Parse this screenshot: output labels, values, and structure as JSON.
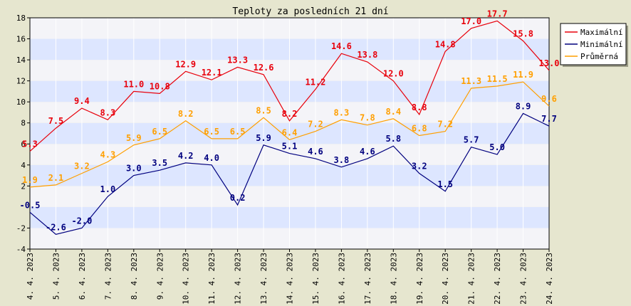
{
  "chart_data": {
    "type": "line",
    "title": "Teploty za posledních 21 dní",
    "xlabel": "",
    "ylabel": "",
    "ylim": [
      -4,
      18
    ],
    "yticks": [
      -4,
      -2,
      2,
      4,
      6,
      8,
      10,
      12,
      14,
      16,
      18
    ],
    "grid": true,
    "legend_position": "top-right",
    "categories": [
      "4. 4. 2023",
      "5. 4. 2023",
      "6. 4. 2023",
      "7. 4. 2023",
      "8. 4. 2023",
      "9. 4. 2023",
      "10. 4. 2023",
      "11. 4. 2023",
      "12. 4. 2023",
      "13. 4. 2023",
      "14. 4. 2023",
      "15. 4. 2023",
      "16. 4. 2023",
      "17. 4. 2023",
      "18. 4. 2023",
      "19. 4. 2023",
      "20. 4. 2023",
      "21. 4. 2023",
      "22. 4. 2023",
      "23. 4. 2023",
      "24. 4. 2023"
    ],
    "series": [
      {
        "name": "Maximální",
        "color": "#e8000b",
        "values": [
          5.3,
          7.5,
          9.4,
          8.3,
          11.0,
          10.8,
          12.9,
          12.1,
          13.3,
          12.6,
          8.2,
          11.2,
          14.6,
          13.8,
          12.0,
          8.8,
          14.8,
          17.0,
          17.7,
          15.8,
          13.0
        ],
        "labels": [
          "5.3",
          "7.5",
          "9.4",
          "8.3",
          "11.0",
          "10.8",
          "12.9",
          "12.1",
          "13.3",
          "12.6",
          "8.2",
          "11.2",
          "14.6",
          "13.8",
          "12.0",
          "8.8",
          "14.8",
          "17.0",
          "17.7",
          "15.8",
          "13.0"
        ]
      },
      {
        "name": "Minimální",
        "color": "#00007f",
        "values": [
          -0.5,
          -2.6,
          -2.0,
          1.0,
          3.0,
          3.5,
          4.2,
          4.0,
          0.2,
          5.9,
          5.1,
          4.6,
          3.8,
          4.6,
          5.8,
          3.2,
          1.5,
          5.7,
          5.0,
          8.9,
          7.7
        ],
        "labels": [
          "-0.5",
          "-2.6",
          "-2.0",
          "1.0",
          "3.0",
          "3.5",
          "4.2",
          "4.0",
          "0.2",
          "5.9",
          "5.1",
          "4.6",
          "3.8",
          "4.6",
          "5.8",
          "3.2",
          "1.5",
          "5.7",
          "5.0",
          "8.9",
          "7.7"
        ]
      },
      {
        "name": "Průměrná",
        "color": "#ff9f00",
        "values": [
          1.9,
          2.1,
          3.2,
          4.3,
          5.9,
          6.5,
          8.2,
          6.5,
          6.5,
          8.5,
          6.4,
          7.2,
          8.3,
          7.8,
          8.4,
          6.8,
          7.2,
          11.3,
          11.5,
          11.9,
          9.6
        ],
        "labels": [
          "1.9",
          "2.1",
          "3.2",
          "4.3",
          "5.9",
          "6.5",
          "8.2",
          "6.5",
          "6.5",
          "8.5",
          "6.4",
          "7.2",
          "8.3",
          "7.8",
          "8.4",
          "6.8",
          "7.2",
          "11.3",
          "11.5",
          "11.9",
          "9.6"
        ]
      }
    ]
  }
}
